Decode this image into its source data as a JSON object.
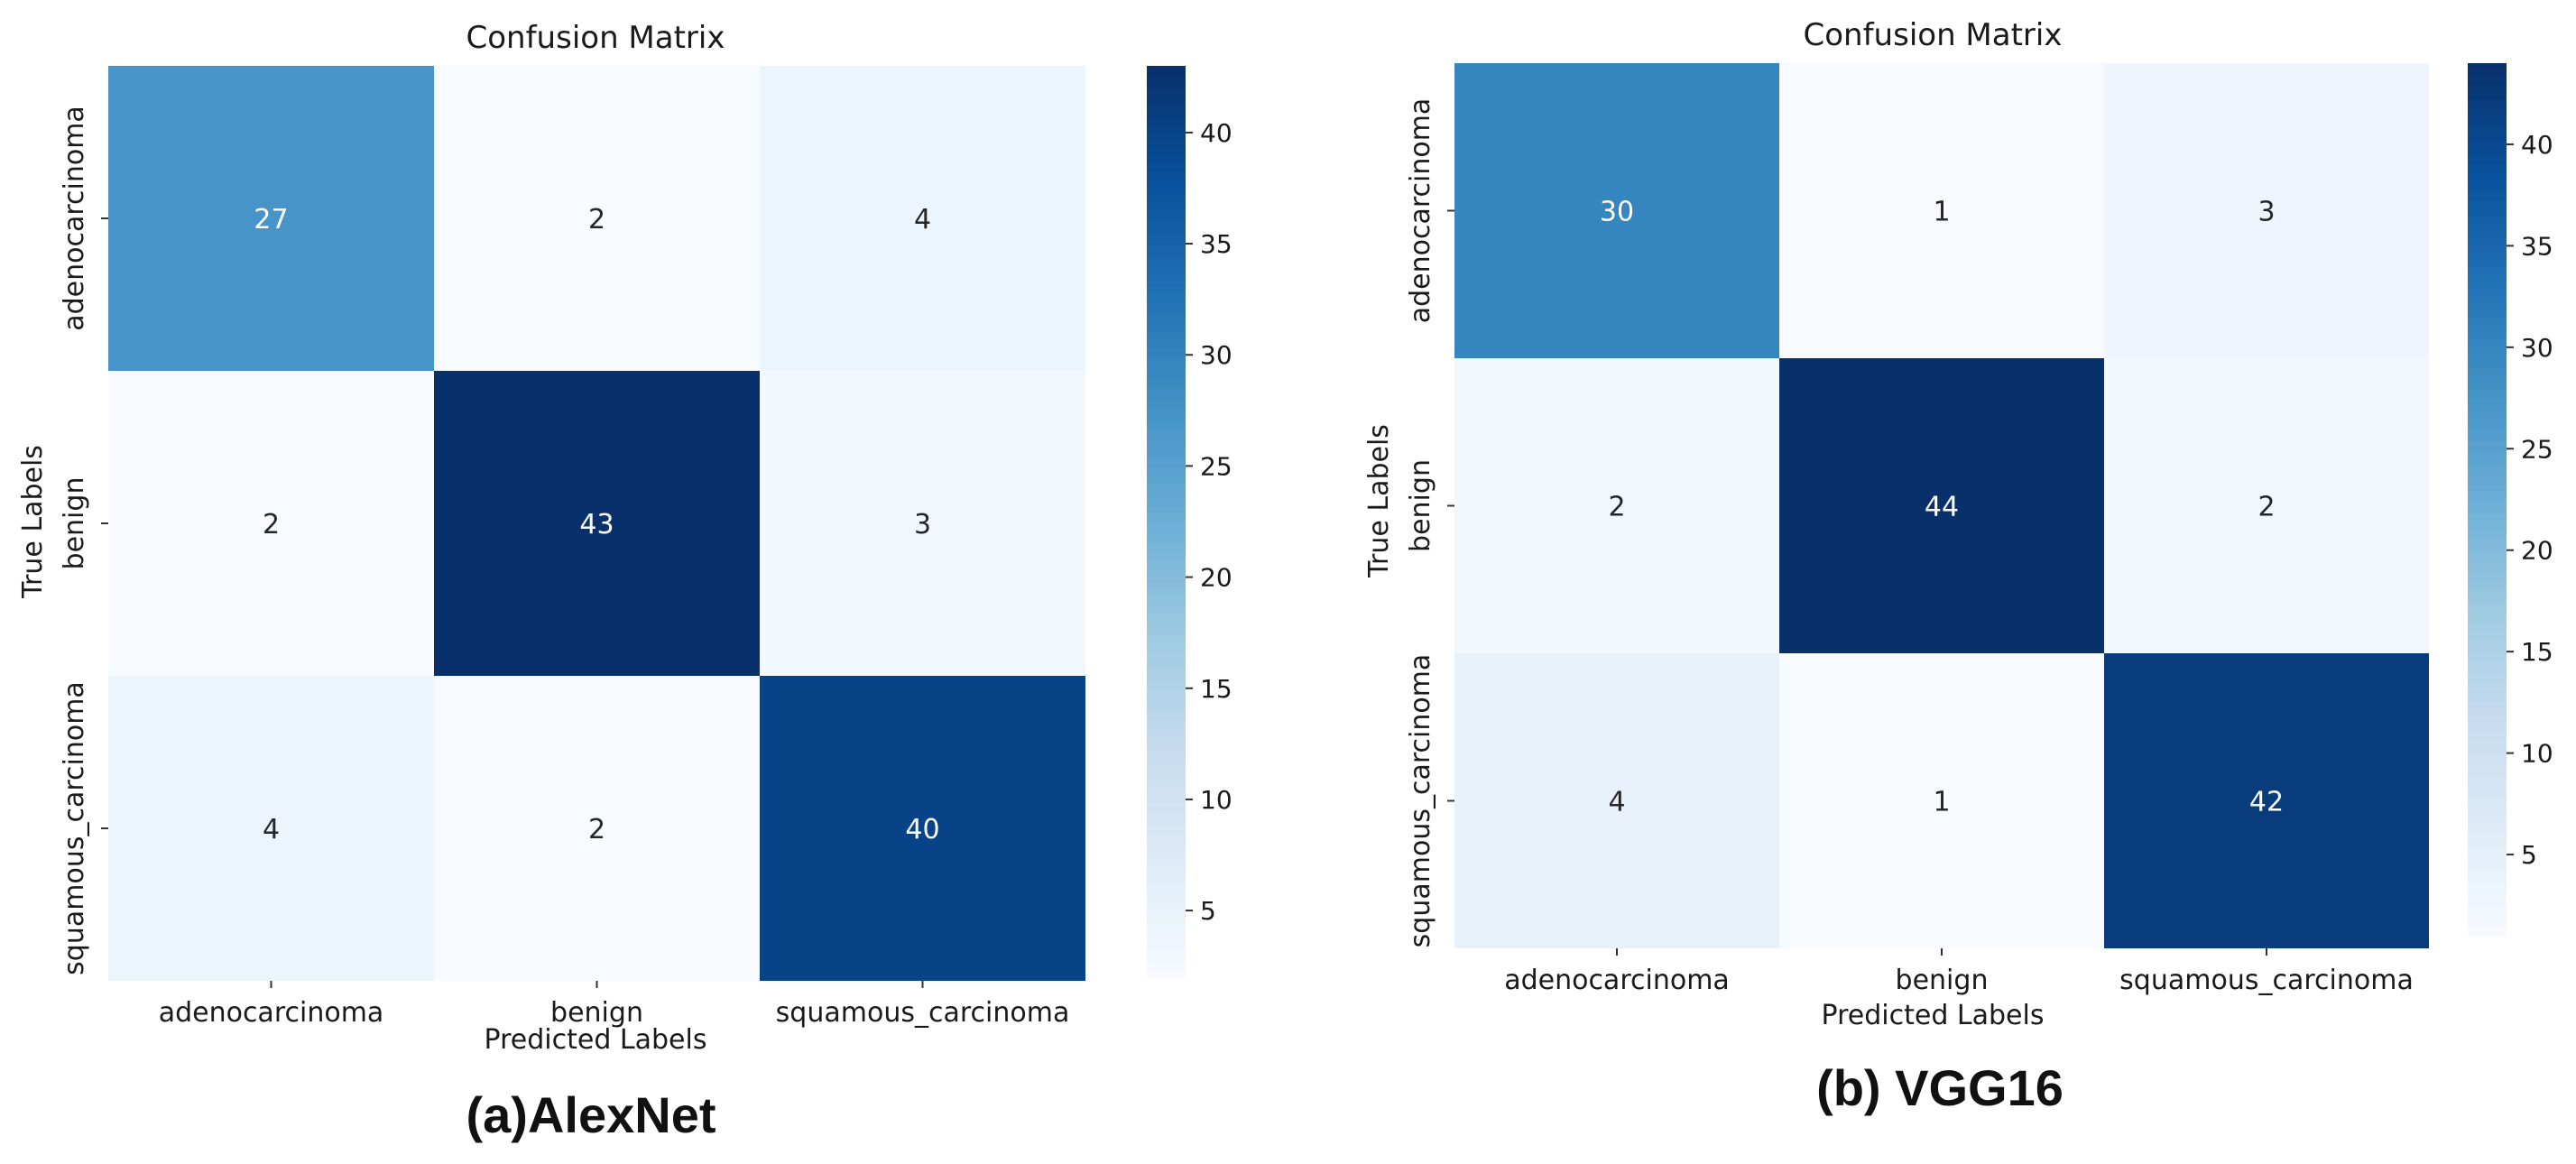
{
  "chart_data": [
    {
      "type": "heatmap",
      "title": "Confusion Matrix",
      "caption": "(a)AlexNet",
      "xlabel": "Predicted Labels",
      "ylabel": "True Labels",
      "x_categories": [
        "adenocarcinoma",
        "benign",
        "squamous_carcinoma"
      ],
      "y_categories": [
        "adenocarcinoma",
        "benign",
        "squamous_carcinoma"
      ],
      "values": [
        [
          27,
          2,
          4
        ],
        [
          2,
          43,
          3
        ],
        [
          4,
          2,
          40
        ]
      ],
      "colormap": "Blues",
      "vmin": 2,
      "vmax": 43,
      "colorbar_ticks": [
        5,
        10,
        15,
        20,
        25,
        30,
        35,
        40
      ]
    },
    {
      "type": "heatmap",
      "title": "Confusion Matrix",
      "caption": "(b) VGG16",
      "xlabel": "Predicted Labels",
      "ylabel": "True Labels",
      "x_categories": [
        "adenocarcinoma",
        "benign",
        "squamous_carcinoma"
      ],
      "y_categories": [
        "adenocarcinoma",
        "benign",
        "squamous_carcinoma"
      ],
      "values": [
        [
          30,
          1,
          3
        ],
        [
          2,
          44,
          2
        ],
        [
          4,
          1,
          42
        ]
      ],
      "colormap": "Blues",
      "vmin": 1,
      "vmax": 44,
      "colorbar_ticks": [
        5,
        10,
        15,
        20,
        25,
        30,
        35,
        40
      ]
    }
  ]
}
